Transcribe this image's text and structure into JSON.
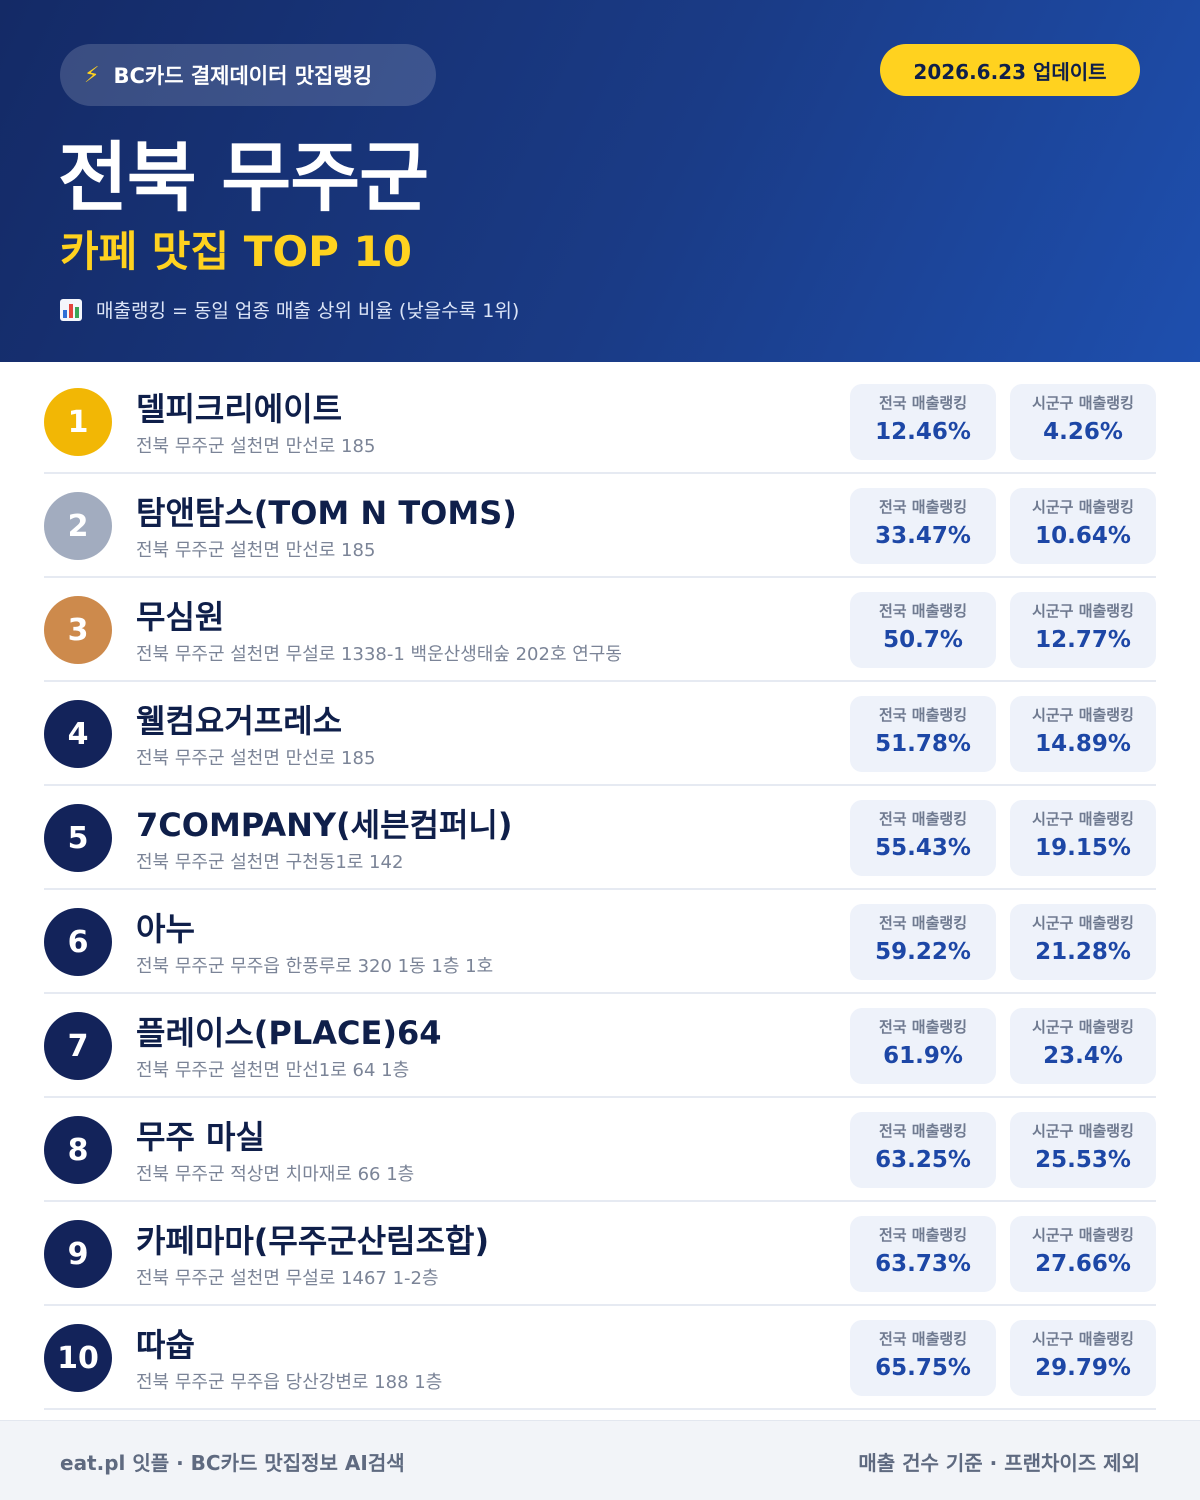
{
  "header": {
    "source_icon": "lightning-bolt-icon",
    "source_label": "BC카드 결제데이터 맛집랭킹",
    "update_label": "2026.6.23 업데이트",
    "title": "전북 무주군",
    "subtitle": "카페 맛집 TOP 10",
    "legend_icon": "bar-chart-icon",
    "legend_text": "매출랭킹 = 동일 업종 매출 상위 비율 (낮을수록 1위)"
  },
  "colors": {
    "header_bg": "#1a3b86",
    "accent_yellow": "#ffd21f",
    "gold": "#f2b705",
    "silver": "#a2acbf",
    "bronze": "#cd8a4c",
    "navy": "#13235a",
    "value_blue": "#1d47a6"
  },
  "stat_labels": {
    "national": "전국 매출랭킹",
    "local": "시군구 매출랭킹"
  },
  "ranking": [
    {
      "rank": "1",
      "name": "델피크리에이트",
      "address": "전북 무주군 설천면 만선로 185",
      "national": "12.46%",
      "local": "4.26%",
      "badge_color": "#f2b705"
    },
    {
      "rank": "2",
      "name": "탐앤탐스(TOM N TOMS)",
      "address": "전북 무주군 설천면 만선로 185",
      "national": "33.47%",
      "local": "10.64%",
      "badge_color": "#a2acbf"
    },
    {
      "rank": "3",
      "name": "무심원",
      "address": "전북 무주군 설천면 무설로 1338-1 백운산생태숲 202호 연구동",
      "national": "50.7%",
      "local": "12.77%",
      "badge_color": "#cd8a4c"
    },
    {
      "rank": "4",
      "name": "웰컴요거프레소",
      "address": "전북 무주군 설천면 만선로 185",
      "national": "51.78%",
      "local": "14.89%",
      "badge_color": "#13235a"
    },
    {
      "rank": "5",
      "name": "7COMPANY(세븐컴퍼니)",
      "address": "전북 무주군 설천면 구천동1로 142",
      "national": "55.43%",
      "local": "19.15%",
      "badge_color": "#13235a"
    },
    {
      "rank": "6",
      "name": "아누",
      "address": "전북 무주군 무주읍 한풍루로 320 1동 1층 1호",
      "national": "59.22%",
      "local": "21.28%",
      "badge_color": "#13235a"
    },
    {
      "rank": "7",
      "name": "플레이스(PLACE)64",
      "address": "전북 무주군 설천면 만선1로 64 1층",
      "national": "61.9%",
      "local": "23.4%",
      "badge_color": "#13235a"
    },
    {
      "rank": "8",
      "name": "무주 마실",
      "address": "전북 무주군 적상면 치마재로 66 1층",
      "national": "63.25%",
      "local": "25.53%",
      "badge_color": "#13235a"
    },
    {
      "rank": "9",
      "name": "카페마마(무주군산림조합)",
      "address": "전북 무주군 설천면 무설로 1467 1-2층",
      "national": "63.73%",
      "local": "27.66%",
      "badge_color": "#13235a"
    },
    {
      "rank": "10",
      "name": "따숩",
      "address": "전북 무주군 무주읍 당산강변로 188 1층",
      "national": "65.75%",
      "local": "29.79%",
      "badge_color": "#13235a"
    }
  ],
  "footer": {
    "left": "eat.pl 잇플 · BC카드 맛집정보 AI검색",
    "right": "매출 건수 기준 · 프랜차이즈 제외"
  }
}
